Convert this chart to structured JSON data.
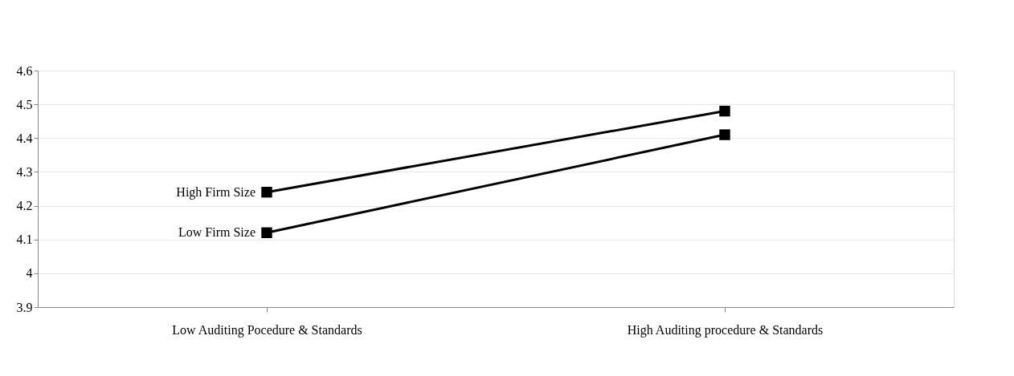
{
  "chart_data": {
    "type": "line",
    "categories": [
      "Low Auditing Pocedure & Standards",
      "High Auditing procedure & Standards"
    ],
    "series": [
      {
        "name": "High Firm Size",
        "color": "#000000",
        "values": [
          4.24,
          4.48
        ]
      },
      {
        "name": "Low Firm Size",
        "color": "#000000",
        "values": [
          4.12,
          4.41
        ]
      }
    ],
    "ylim": [
      3.9,
      4.6
    ],
    "yticks": [
      3.9,
      4,
      4.1,
      4.2,
      4.3,
      4.4,
      4.5,
      4.6
    ],
    "grid": "y",
    "legend": false,
    "marker": "square",
    "line_style": "solid"
  }
}
